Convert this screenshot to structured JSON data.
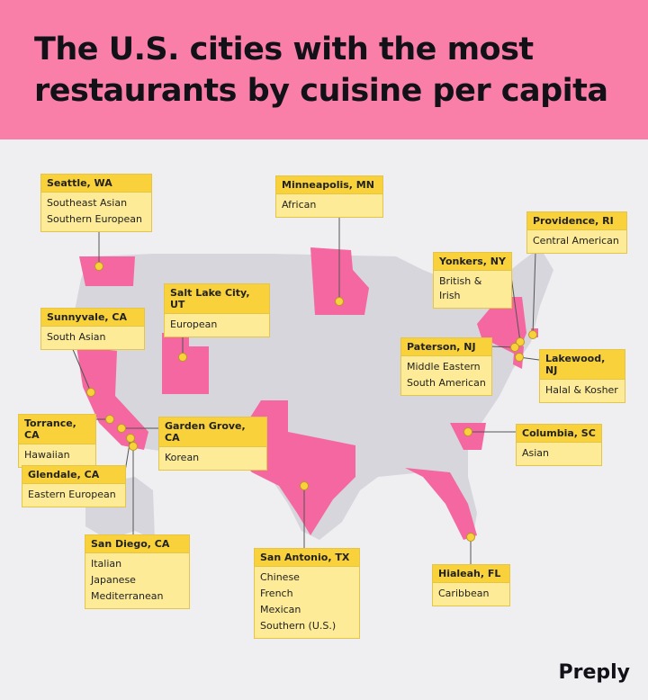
{
  "header": {
    "title": "The U.S. cities with the most restaurants by cuisine per capita"
  },
  "cities": [
    {
      "label": "Seattle, WA",
      "cuisines": [
        "Southeast Asian",
        "Southern European"
      ]
    },
    {
      "label": "Minneapolis, MN",
      "cuisines": [
        "African"
      ]
    },
    {
      "label": "Providence, RI",
      "cuisines": [
        "Central American"
      ]
    },
    {
      "label": "Yonkers, NY",
      "cuisines": [
        "British & Irish"
      ]
    },
    {
      "label": "Salt Lake City, UT",
      "cuisines": [
        "European"
      ]
    },
    {
      "label": "Sunnyvale, CA",
      "cuisines": [
        "South Asian"
      ]
    },
    {
      "label": "Paterson, NJ",
      "cuisines": [
        "Middle Eastern",
        "South American"
      ]
    },
    {
      "label": "Lakewood, NJ",
      "cuisines": [
        "Halal & Kosher"
      ]
    },
    {
      "label": "Torrance, CA",
      "cuisines": [
        "Hawaiian"
      ]
    },
    {
      "label": "Garden Grove, CA",
      "cuisines": [
        "Korean"
      ]
    },
    {
      "label": "Columbia, SC",
      "cuisines": [
        "Asian"
      ]
    },
    {
      "label": "Glendale, CA",
      "cuisines": [
        "Eastern European"
      ]
    },
    {
      "label": "San Diego, CA",
      "cuisines": [
        "Italian",
        "Japanese",
        "Mediterranean"
      ]
    },
    {
      "label": "San Antonio, TX",
      "cuisines": [
        "Chinese",
        "French",
        "Mexican",
        "Southern (U.S.)"
      ]
    },
    {
      "label": "Hialeah, FL",
      "cuisines": [
        "Caribbean"
      ]
    }
  ],
  "brand": "Preply"
}
